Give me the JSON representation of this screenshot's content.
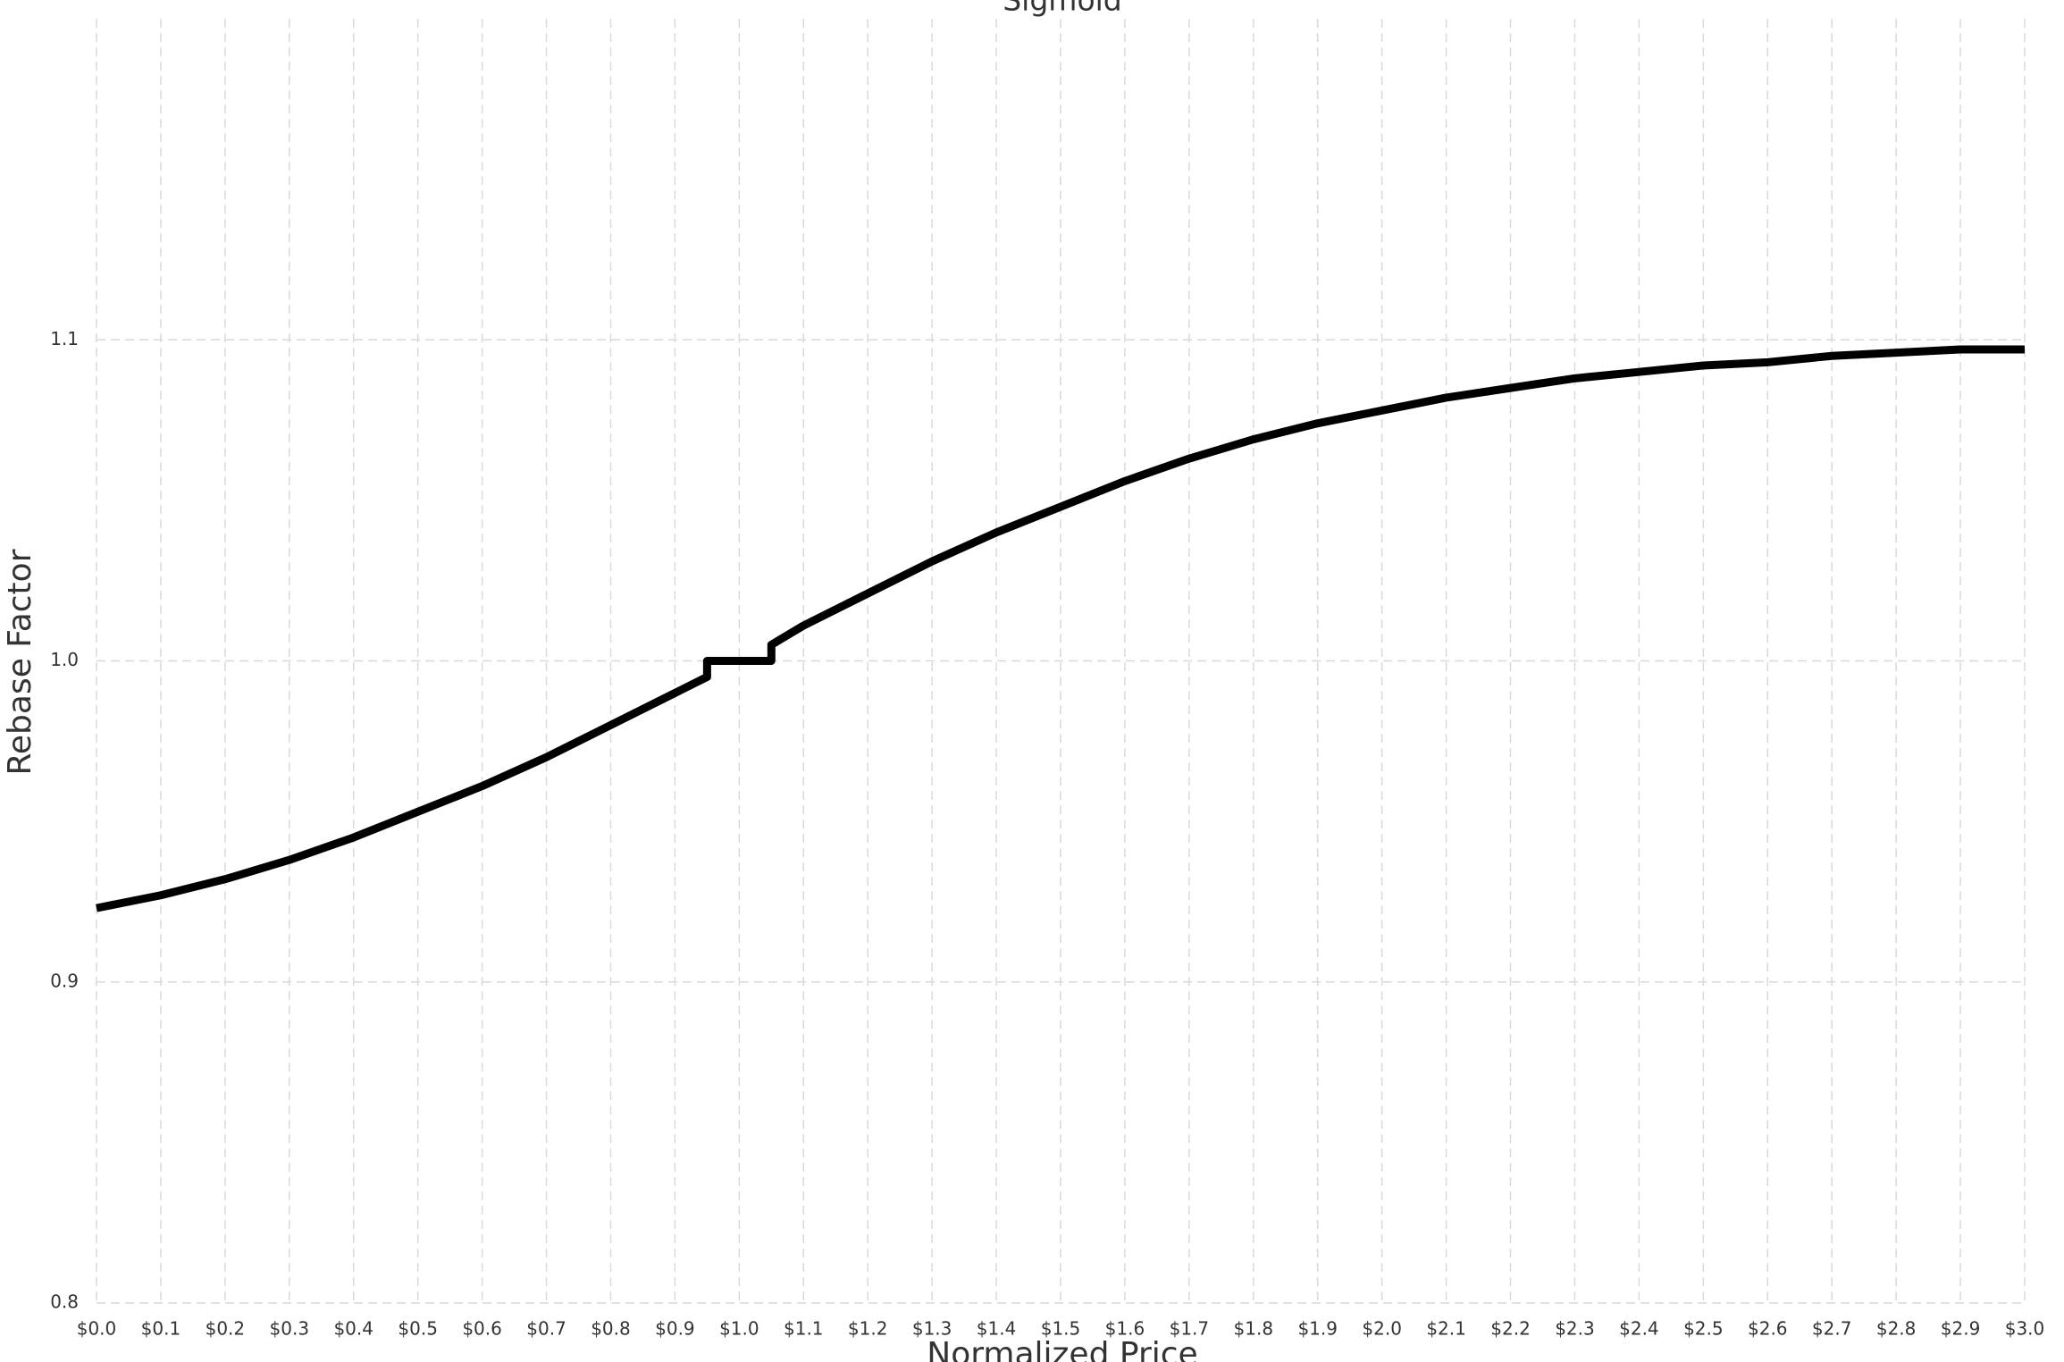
{
  "chart_data": {
    "type": "line",
    "title": "Sigmoid",
    "xlabel": "Normalized Price",
    "ylabel": "Rebase Factor",
    "x": [
      0,
      0.1,
      0.2,
      0.3,
      0.4,
      0.5,
      0.6,
      0.7,
      0.8,
      0.9,
      0.95,
      0.95,
      1.05,
      1.05,
      1.1,
      1.2,
      1.3,
      1.4,
      1.5,
      1.6,
      1.7,
      1.8,
      1.9,
      2.0,
      2.1,
      2.2,
      2.3,
      2.4,
      2.5,
      2.6,
      2.7,
      2.8,
      2.9,
      3.0
    ],
    "values": [
      0.923,
      0.927,
      0.932,
      0.938,
      0.945,
      0.953,
      0.961,
      0.97,
      0.98,
      0.99,
      0.995,
      1.0,
      1.0,
      1.005,
      1.011,
      1.021,
      1.031,
      1.04,
      1.048,
      1.056,
      1.063,
      1.069,
      1.074,
      1.078,
      1.082,
      1.085,
      1.088,
      1.09,
      1.092,
      1.093,
      1.095,
      1.096,
      1.097,
      1.097
    ],
    "color": "#000000",
    "xlim": [
      0,
      3
    ],
    "ylim": [
      0.8,
      1.2
    ],
    "xticks": [
      {
        "value": 0,
        "label": "$0.0"
      },
      {
        "value": 0.1,
        "label": "$0.1"
      },
      {
        "value": 0.2,
        "label": "$0.2"
      },
      {
        "value": 0.3,
        "label": "$0.3"
      },
      {
        "value": 0.4,
        "label": "$0.4"
      },
      {
        "value": 0.5,
        "label": "$0.5"
      },
      {
        "value": 0.6,
        "label": "$0.6"
      },
      {
        "value": 0.7,
        "label": "$0.7"
      },
      {
        "value": 0.8,
        "label": "$0.8"
      },
      {
        "value": 0.9,
        "label": "$0.9"
      },
      {
        "value": 1.0,
        "label": "$1.0"
      },
      {
        "value": 1.1,
        "label": "$1.1"
      },
      {
        "value": 1.2,
        "label": "$1.2"
      },
      {
        "value": 1.3,
        "label": "$1.3"
      },
      {
        "value": 1.4,
        "label": "$1.4"
      },
      {
        "value": 1.5,
        "label": "$1.5"
      },
      {
        "value": 1.6,
        "label": "$1.6"
      },
      {
        "value": 1.7,
        "label": "$1.7"
      },
      {
        "value": 1.8,
        "label": "$1.8"
      },
      {
        "value": 1.9,
        "label": "$1.9"
      },
      {
        "value": 2.0,
        "label": "$2.0"
      },
      {
        "value": 2.1,
        "label": "$2.1"
      },
      {
        "value": 2.2,
        "label": "$2.2"
      },
      {
        "value": 2.3,
        "label": "$2.3"
      },
      {
        "value": 2.4,
        "label": "$2.4"
      },
      {
        "value": 2.5,
        "label": "$2.5"
      },
      {
        "value": 2.6,
        "label": "$2.6"
      },
      {
        "value": 2.7,
        "label": "$2.7"
      },
      {
        "value": 2.8,
        "label": "$2.8"
      },
      {
        "value": 2.9,
        "label": "$2.9"
      },
      {
        "value": 3.0,
        "label": "$3.0"
      }
    ],
    "yticks": [
      0.8,
      0.9,
      {
        "value": 1,
        "label": "1.0"
      },
      1.1
    ],
    "grid": true
  }
}
